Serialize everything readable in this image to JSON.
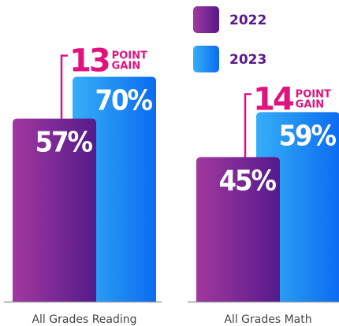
{
  "chart_data": {
    "type": "bar",
    "categories": [
      "All Grades Reading",
      "All Grades Math"
    ],
    "series": [
      {
        "name": "2022",
        "color": "#7d2597",
        "values": [
          57,
          45
        ],
        "value_labels": [
          "57%",
          "45%"
        ]
      },
      {
        "name": "2023",
        "color": "#1a8cf2",
        "values": [
          70,
          59
        ],
        "value_labels": [
          "70%",
          "59%"
        ]
      }
    ],
    "ylim": [
      0,
      90
    ],
    "annotations": [
      {
        "number": "13",
        "text": "POINT GAIN",
        "color": "#e0137e"
      },
      {
        "number": "14",
        "text": "POINT GAIN",
        "color": "#e0137e"
      }
    ],
    "legend": "top-right"
  }
}
